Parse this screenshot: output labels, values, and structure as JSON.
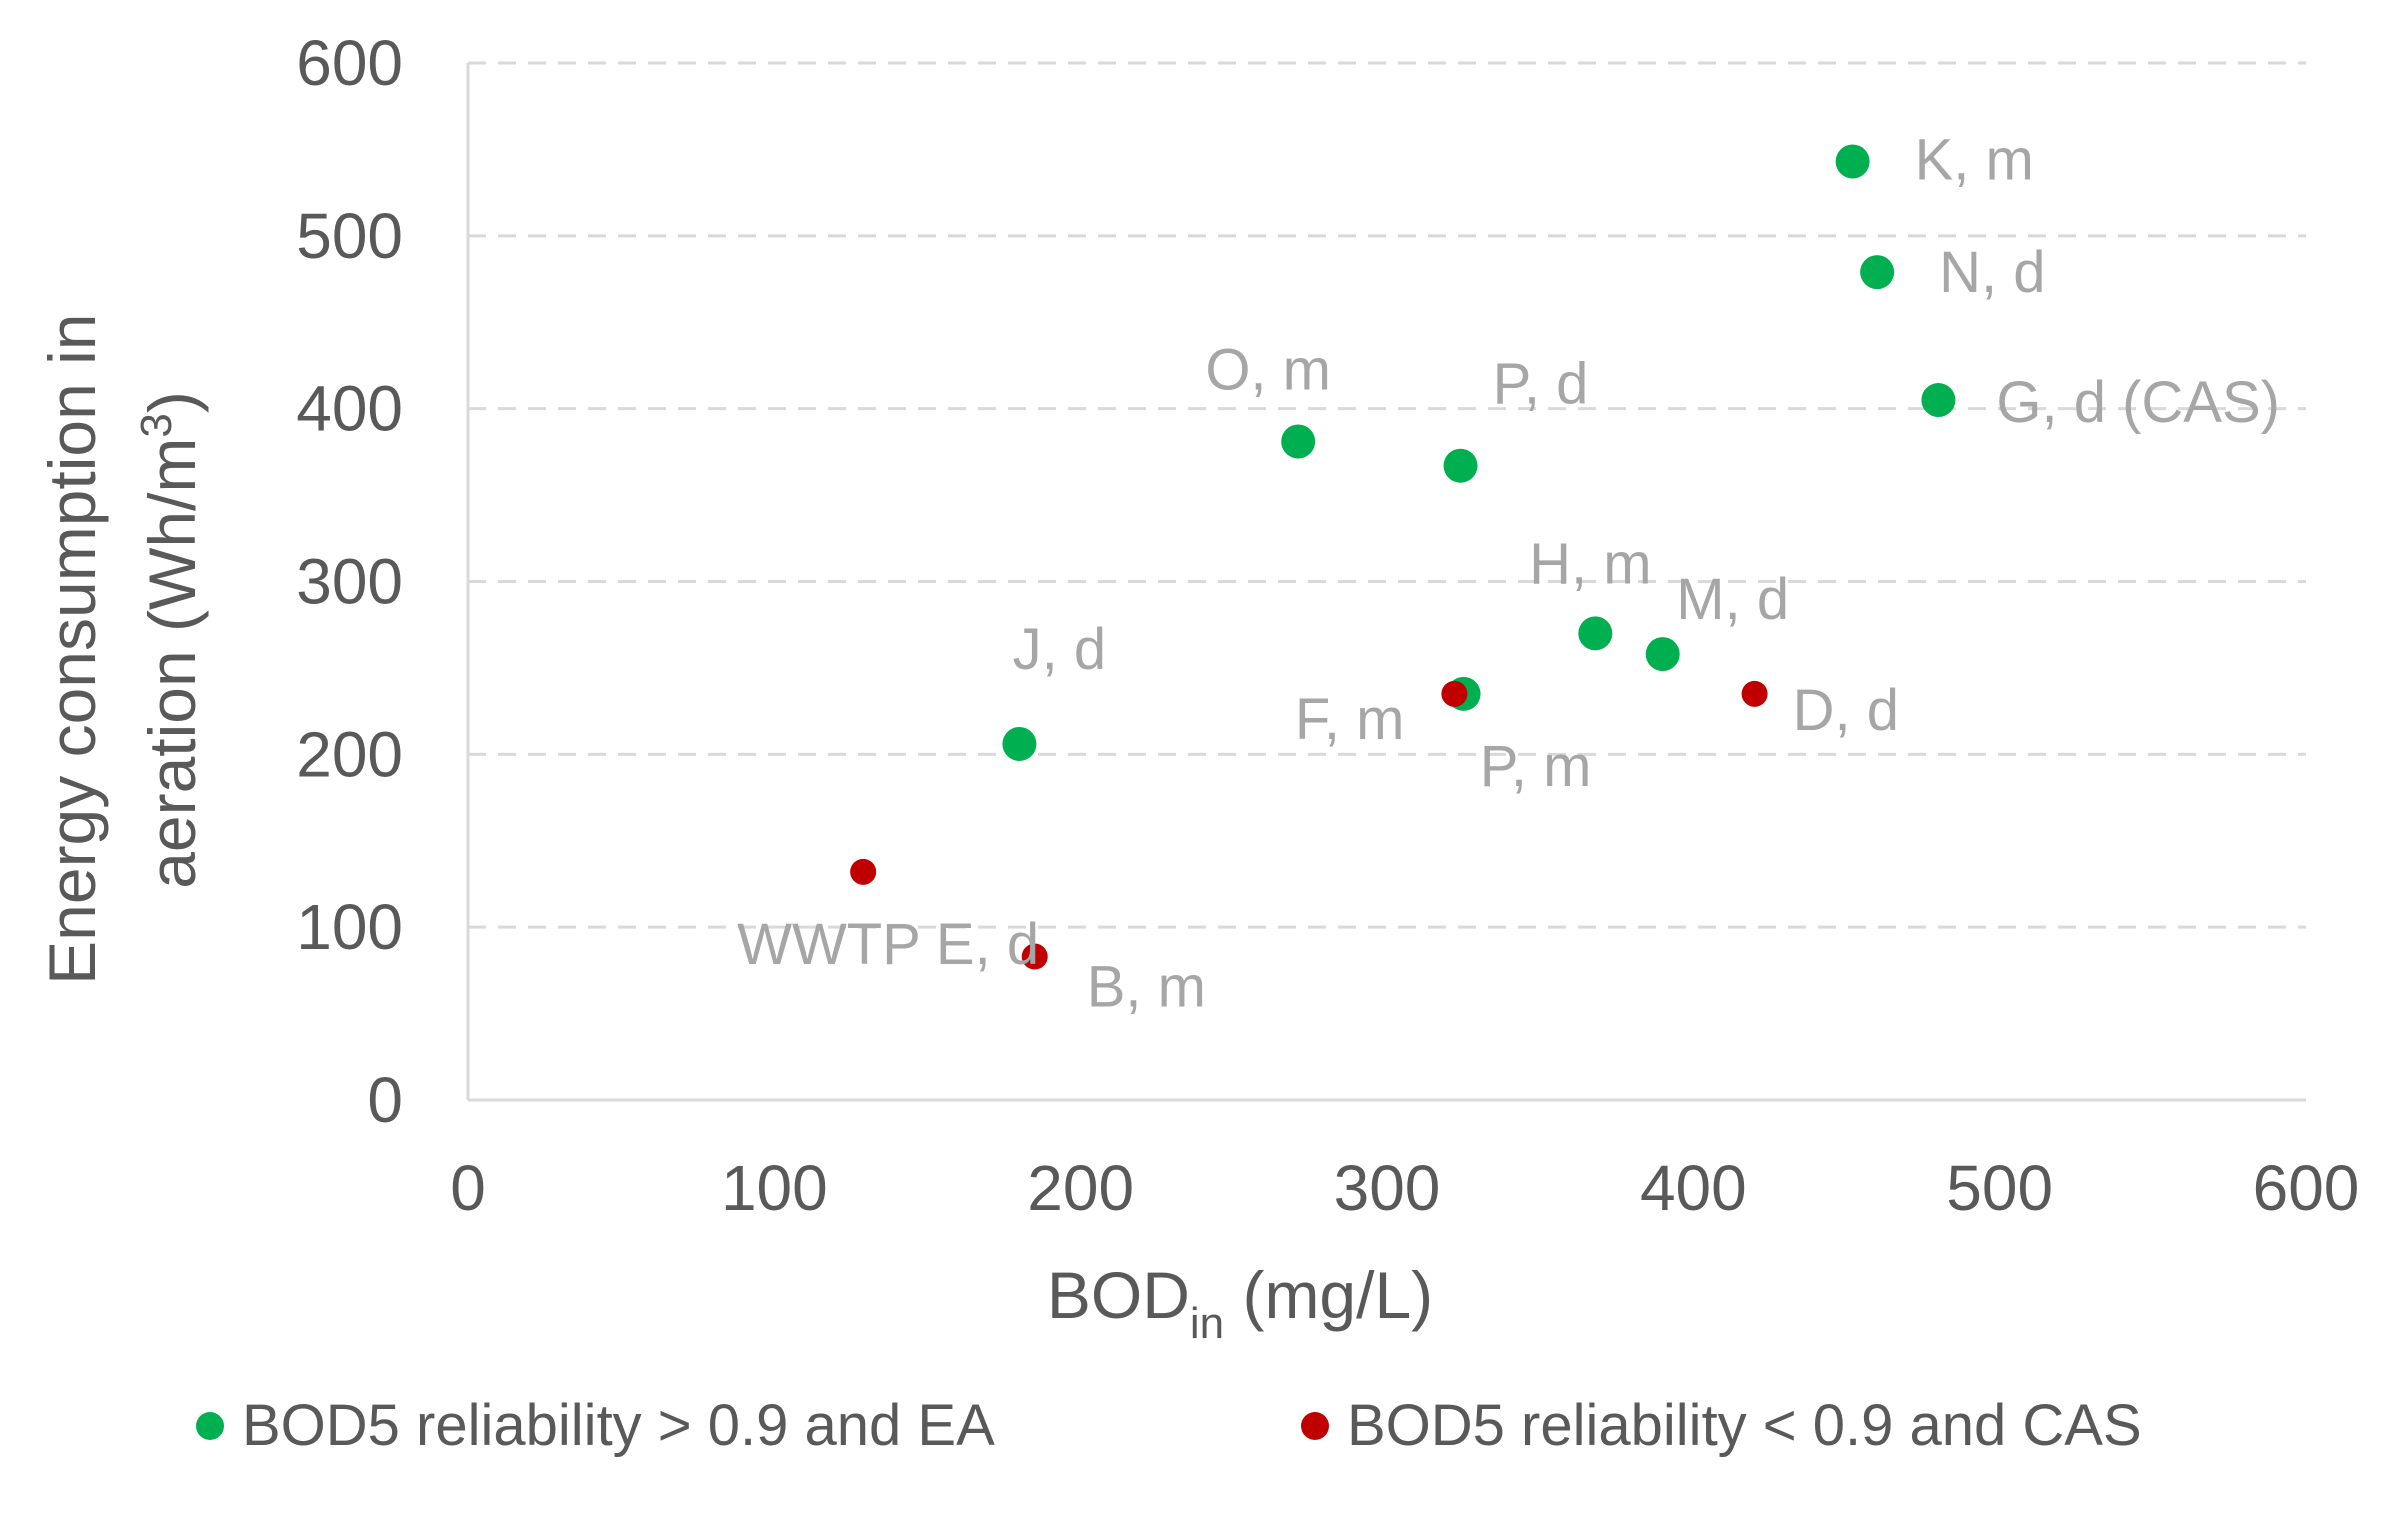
{
  "chart_data": {
    "type": "scatter",
    "xlabel": {
      "main": "BOD",
      "sub": "in",
      "rest": " (mg/L)"
    },
    "ylabel": {
      "line1": "Energy consumption in",
      "line2_main": "aeration (Wh/m",
      "line2_sup": "3",
      "line2_end": ")"
    },
    "xlim": [
      0,
      600
    ],
    "ylim": [
      0,
      600
    ],
    "xticks": [
      "0",
      "100",
      "200",
      "300",
      "400",
      "500",
      "600"
    ],
    "yticks": [
      "0",
      "100",
      "200",
      "300",
      "400",
      "500",
      "600"
    ],
    "grid": "horizontal-dashed",
    "legend_position": "bottom",
    "series": [
      {
        "name": "BOD5 reliability > 0.9 and EA",
        "color": "#00b050",
        "points": [
          {
            "label": "K, m",
            "x": 452,
            "y": 543
          },
          {
            "label": "N, d",
            "x": 460,
            "y": 479
          },
          {
            "label": "G, d (CAS)",
            "x": 480,
            "y": 405
          },
          {
            "label": "O, m",
            "x": 271,
            "y": 381
          },
          {
            "label": "P, d",
            "x": 324,
            "y": 367
          },
          {
            "label": "H, m",
            "x": 368,
            "y": 270
          },
          {
            "label": "M, d",
            "x": 390,
            "y": 258
          },
          {
            "label": "P, m",
            "x": 325,
            "y": 235
          },
          {
            "label": "J, d",
            "x": 180,
            "y": 206
          }
        ]
      },
      {
        "name": "BOD5 reliability < 0.9 and CAS",
        "color": "#c00000",
        "points": [
          {
            "label": "F, m",
            "x": 322,
            "y": 235
          },
          {
            "label": "D, d",
            "x": 420,
            "y": 235
          },
          {
            "label": "WWTP E, d",
            "x": 129,
            "y": 132
          },
          {
            "label": "B, m",
            "x": 185,
            "y": 83
          }
        ]
      }
    ]
  }
}
